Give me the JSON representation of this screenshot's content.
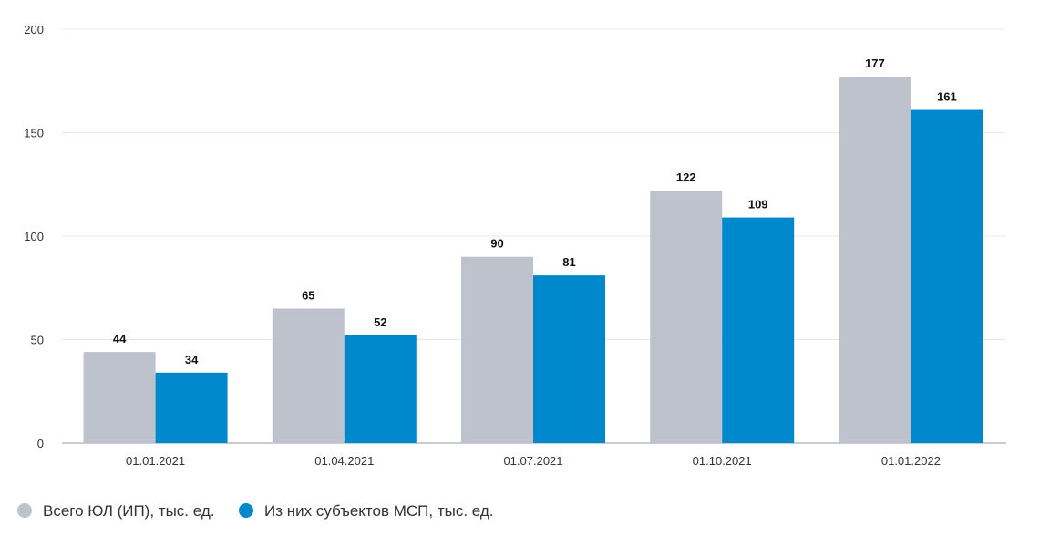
{
  "chart_data": {
    "type": "bar",
    "title": "",
    "xlabel": "",
    "ylabel": "",
    "ylim": [
      0,
      200
    ],
    "yticks": [
      0,
      50,
      100,
      150,
      200
    ],
    "grid": true,
    "legend_position": "bottom-left",
    "categories": [
      "01.01.2021",
      "01.04.2021",
      "01.07.2021",
      "01.10.2021",
      "01.01.2022"
    ],
    "series": [
      {
        "name": "Всего ЮЛ (ИП), тыс. ед.",
        "color": "#BEC2CC",
        "values": [
          44,
          65,
          90,
          122,
          177
        ]
      },
      {
        "name": "Из них субъектов МСП, тыс. ед.",
        "color": "#0088CC",
        "values": [
          34,
          52,
          81,
          109,
          161
        ]
      }
    ]
  }
}
